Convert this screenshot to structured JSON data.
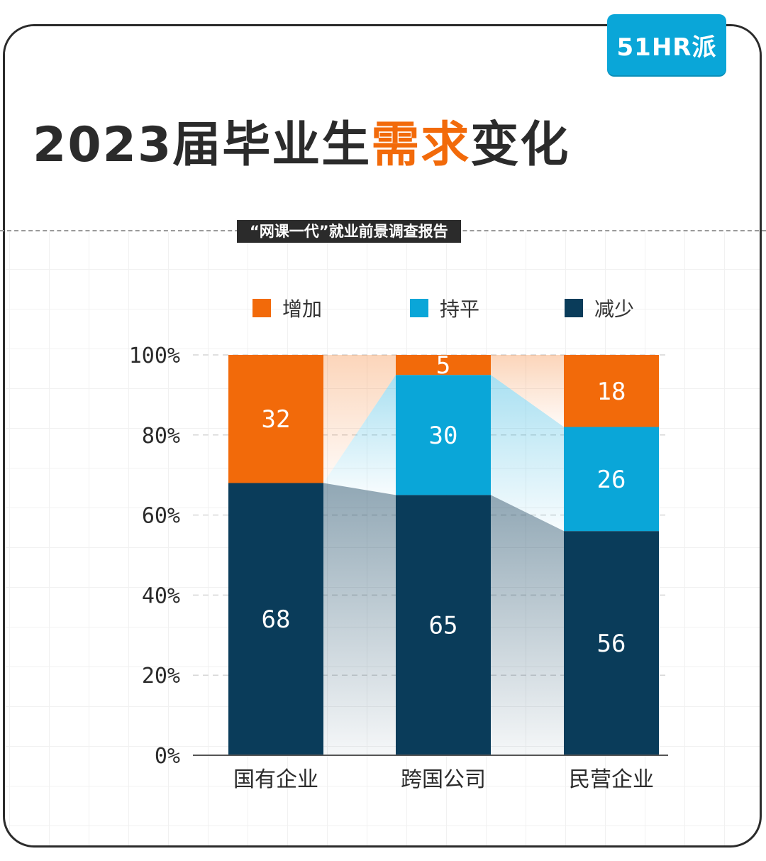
{
  "brand": {
    "logo_text": "51HR派",
    "accent": "#0aa6d8"
  },
  "title": {
    "prefix": "2023届毕业生",
    "highlight": "需求",
    "suffix": "变化"
  },
  "subtitle": "“网课一代”就业前景调查报告",
  "colors": {
    "increase": "#f26a0a",
    "flat": "#0aa6d8",
    "decrease": "#0a3c5a",
    "text": "#2b2b2b"
  },
  "legend": [
    {
      "label": "增加",
      "color": "#f26a0a"
    },
    {
      "label": "持平",
      "color": "#0aa6d8"
    },
    {
      "label": "减少",
      "color": "#0a3c5a"
    }
  ],
  "chart_data": {
    "type": "bar",
    "stacked": true,
    "title": "2023届毕业生需求变化",
    "categories": [
      "国有企业",
      "跨国公司",
      "民营企业"
    ],
    "series": [
      {
        "name": "减少",
        "values": [
          68,
          65,
          56
        ],
        "color": "#0a3c5a"
      },
      {
        "name": "持平",
        "values": [
          0,
          30,
          26
        ],
        "color": "#0aa6d8"
      },
      {
        "name": "增加",
        "values": [
          32,
          5,
          18
        ],
        "color": "#f26a0a"
      }
    ],
    "y_ticks": [
      "0%",
      "20%",
      "40%",
      "60%",
      "80%",
      "100%"
    ],
    "ylim": [
      0,
      100
    ],
    "xlabel": "",
    "ylabel": "",
    "grid": true,
    "legend_position": "top"
  }
}
